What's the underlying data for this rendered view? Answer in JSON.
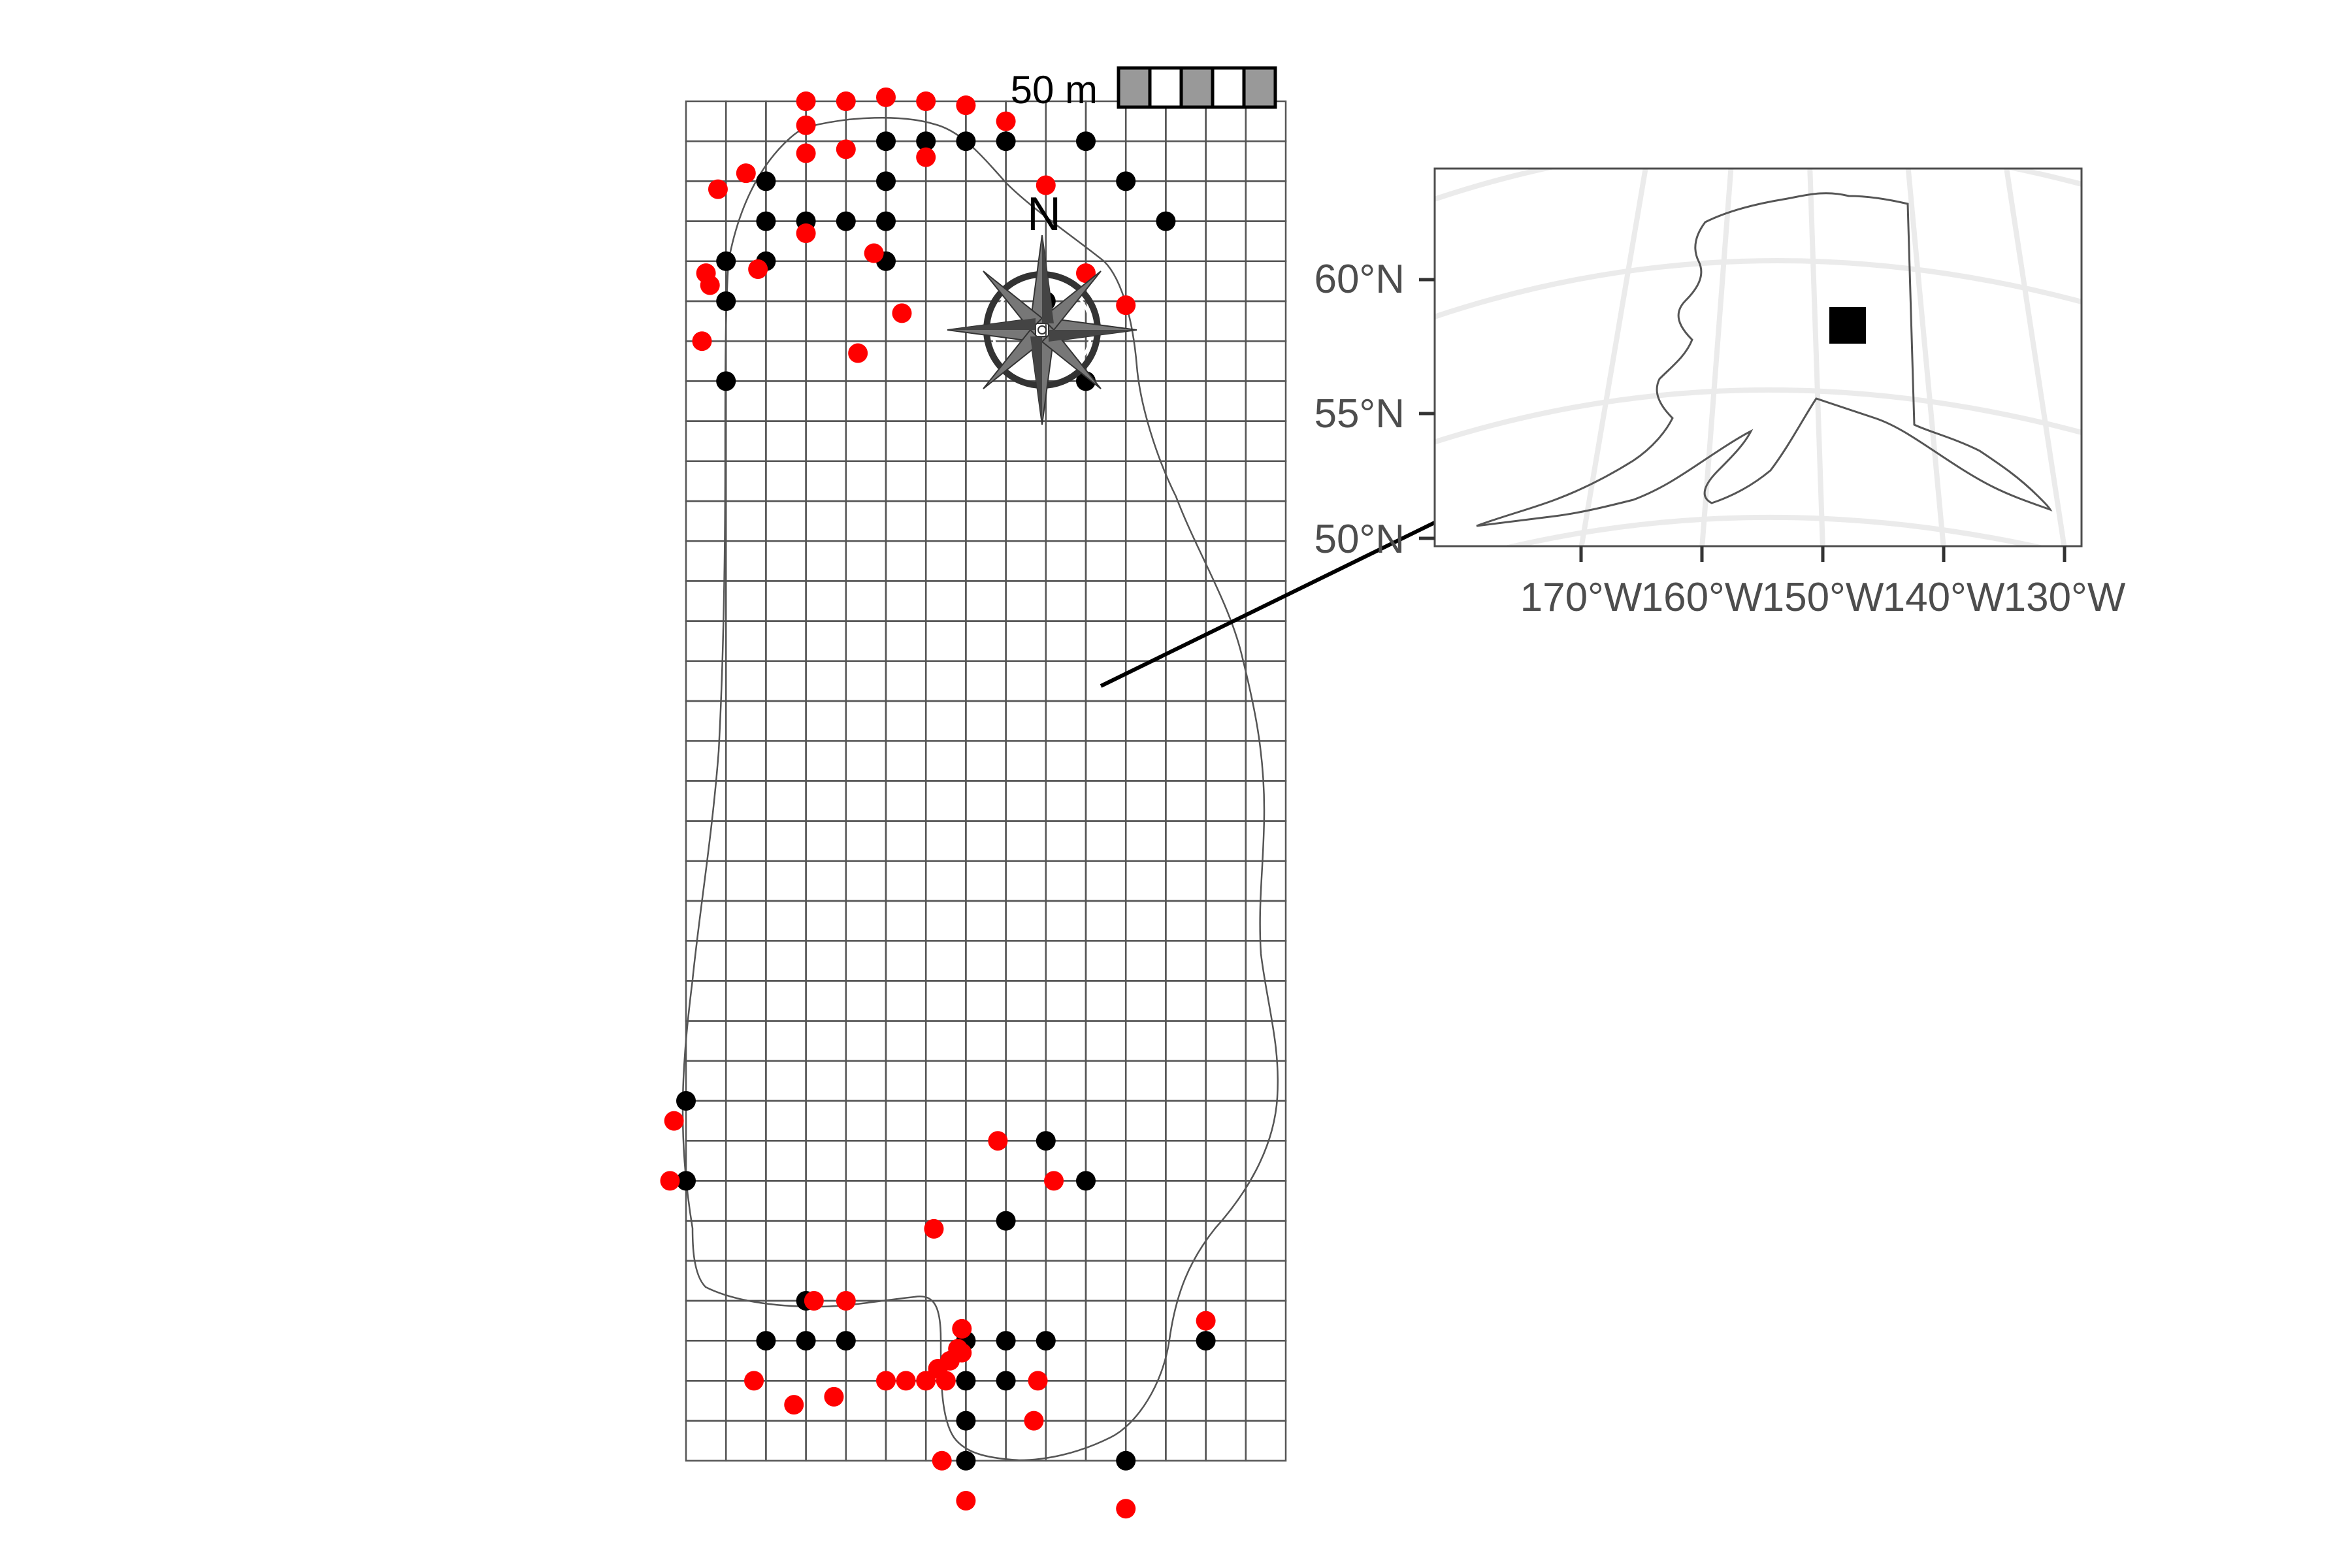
{
  "scale_bar": {
    "label": "50 m",
    "segments": [
      "#999999",
      "#ffffff",
      "#999999",
      "#ffffff",
      "#999999"
    ]
  },
  "north_arrow": {
    "label": "N"
  },
  "inset": {
    "y_ticks": [
      "60°N",
      "55°N",
      "50°N"
    ],
    "x_ticks": [
      "170°W",
      "160°W",
      "150°W",
      "140°W",
      "130°W"
    ],
    "marker_color": "#000000"
  },
  "colors": {
    "grid": "#555555",
    "outline": "#555555",
    "point_black": "#000000",
    "point_red": "#ff0000",
    "graticule": "#ebebeb",
    "inset_border": "#4d4d4d"
  },
  "grid": {
    "columns": 15,
    "rows": 34
  },
  "points_black": [
    [
      5,
      1
    ],
    [
      6,
      1
    ],
    [
      7,
      1
    ],
    [
      8,
      1
    ],
    [
      10,
      1
    ],
    [
      11,
      2
    ],
    [
      12,
      3
    ],
    [
      2,
      2
    ],
    [
      2,
      3
    ],
    [
      2,
      4
    ],
    [
      3,
      3
    ],
    [
      4,
      3
    ],
    [
      5,
      3
    ],
    [
      5,
      2
    ],
    [
      5,
      4
    ],
    [
      1,
      4
    ],
    [
      1,
      5
    ],
    [
      1,
      7
    ],
    [
      10,
      7
    ],
    [
      9,
      5
    ],
    [
      0,
      25
    ],
    [
      0,
      27
    ],
    [
      8,
      28
    ],
    [
      7,
      31
    ],
    [
      8,
      31
    ],
    [
      9,
      31
    ],
    [
      3,
      30
    ],
    [
      2,
      31
    ],
    [
      3,
      31
    ],
    [
      4,
      31
    ],
    [
      7,
      32
    ],
    [
      7,
      33
    ],
    [
      7,
      34
    ],
    [
      8,
      32
    ],
    [
      11,
      34
    ],
    [
      13,
      31
    ],
    [
      9,
      26
    ],
    [
      10,
      27
    ]
  ],
  "points_red": [
    [
      3,
      0
    ],
    [
      4,
      0
    ],
    [
      5,
      -0.1
    ],
    [
      6,
      0
    ],
    [
      7,
      0.1
    ],
    [
      8,
      0.5
    ],
    [
      3,
      0.6
    ],
    [
      3,
      1.3
    ],
    [
      4,
      1.2
    ],
    [
      6,
      1.4
    ],
    [
      1.5,
      1.8
    ],
    [
      9,
      2.1
    ],
    [
      0.8,
      2.2
    ],
    [
      3,
      3.3
    ],
    [
      4.7,
      3.8
    ],
    [
      0.6,
      4.6
    ],
    [
      1.8,
      4.2
    ],
    [
      0.5,
      4.3
    ],
    [
      5.4,
      5.3
    ],
    [
      10,
      4.3
    ],
    [
      11,
      5.1
    ],
    [
      0.4,
      6.0
    ],
    [
      4.3,
      6.3
    ],
    [
      -0.3,
      25.5
    ],
    [
      -0.4,
      27
    ],
    [
      7.8,
      26
    ],
    [
      9.2,
      27
    ],
    [
      6.2,
      28.2
    ],
    [
      3.2,
      30
    ],
    [
      4,
      30
    ],
    [
      1.7,
      32
    ],
    [
      2.7,
      32.6
    ],
    [
      3.7,
      32.4
    ],
    [
      5,
      32
    ],
    [
      5.5,
      32
    ],
    [
      6,
      32
    ],
    [
      6.3,
      31.7
    ],
    [
      6.6,
      31.5
    ],
    [
      6.8,
      31.2
    ],
    [
      6.9,
      31.3
    ],
    [
      6.5,
      32
    ],
    [
      6.9,
      30.7
    ],
    [
      8.8,
      32
    ],
    [
      8.7,
      33
    ],
    [
      6.4,
      34
    ],
    [
      7,
      35
    ],
    [
      11,
      35.2
    ],
    [
      13,
      30.5
    ]
  ]
}
